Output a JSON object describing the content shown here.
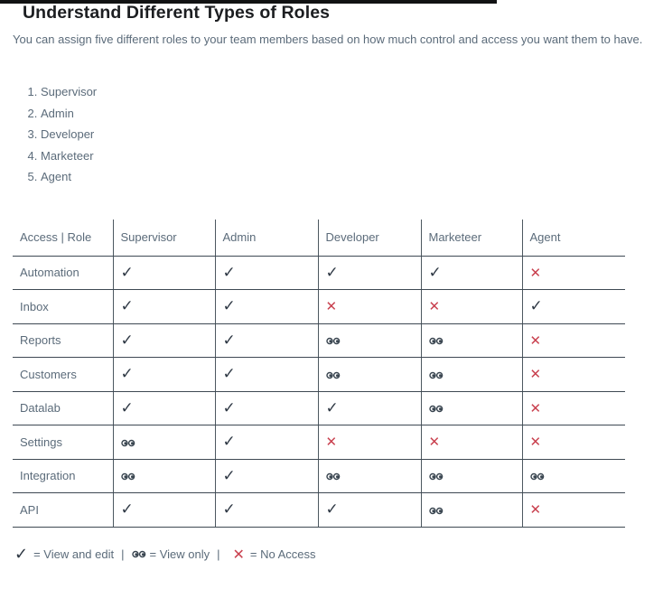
{
  "page": {
    "title": "Understand Different Types of Roles",
    "intro": "You can assign five different roles to your team members based on how much control and access you want them to have."
  },
  "roles_list": [
    "Supervisor",
    "Admin",
    "Developer",
    "Marketeer",
    "Agent"
  ],
  "table": {
    "headers": [
      "Access | Role",
      "Supervisor",
      "Admin",
      "Developer",
      "Marketeer",
      "Agent"
    ],
    "rows": [
      {
        "feature": "Automation",
        "access": [
          "check",
          "check",
          "check",
          "check",
          "cross"
        ]
      },
      {
        "feature": "Inbox",
        "access": [
          "check",
          "check",
          "cross",
          "cross",
          "check"
        ]
      },
      {
        "feature": "Reports",
        "access": [
          "check",
          "check",
          "eyes",
          "eyes",
          "cross"
        ]
      },
      {
        "feature": "Customers",
        "access": [
          "check",
          "check",
          "eyes",
          "eyes",
          "cross"
        ]
      },
      {
        "feature": "Datalab",
        "access": [
          "check",
          "check",
          "check",
          "eyes",
          "cross"
        ]
      },
      {
        "feature": "Settings",
        "access": [
          "eyes",
          "check",
          "cross",
          "cross",
          "cross"
        ]
      },
      {
        "feature": "Integration",
        "access": [
          "eyes",
          "check",
          "eyes",
          "eyes",
          "eyes"
        ]
      },
      {
        "feature": "API",
        "access": [
          "check",
          "check",
          "check",
          "eyes",
          "cross"
        ]
      }
    ]
  },
  "legend": {
    "check_label": "= View and edit",
    "eyes_label": "= View only",
    "cross_label": "= No Access",
    "separator": "|"
  },
  "symbols": {
    "check": "✓",
    "cross": "✕"
  },
  "colors": {
    "check": "#2e3844",
    "cross": "#c9414f",
    "accent_bar": "#111213",
    "border": "#3e4953"
  }
}
